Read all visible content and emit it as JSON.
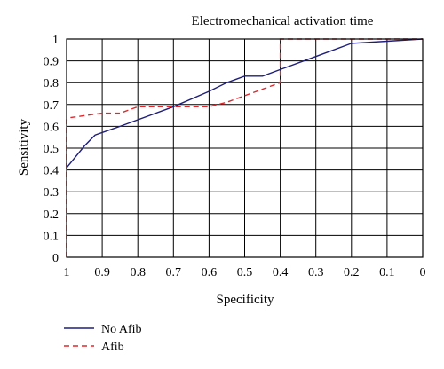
{
  "chart_data": {
    "type": "line",
    "title": "Electromechanical activation time",
    "xlabel": "Specificity",
    "ylabel": "Sensitivity",
    "xlim": [
      1,
      0
    ],
    "ylim": [
      0,
      1
    ],
    "x_ticks": [
      "1",
      "0.9",
      "0.8",
      "0.7",
      "0.6",
      "0.5",
      "0.4",
      "0.3",
      "0.2",
      "0.1",
      "0"
    ],
    "y_ticks": [
      "0",
      "0.1",
      "0.2",
      "0.3",
      "0.4",
      "0.5",
      "0.6",
      "0.7",
      "0.8",
      "0.9",
      "1"
    ],
    "grid": true,
    "legend_position": "bottom-left",
    "series": [
      {
        "name": "No Afib",
        "color": "#1f1f7a",
        "style": "solid",
        "x": [
          1,
          0.98,
          0.95,
          0.92,
          0.85,
          0.7,
          0.6,
          0.55,
          0.5,
          0.45,
          0.4,
          0.3,
          0.2,
          0.1,
          0
        ],
        "y": [
          0.41,
          0.45,
          0.51,
          0.56,
          0.6,
          0.69,
          0.76,
          0.8,
          0.83,
          0.83,
          0.86,
          0.92,
          0.98,
          0.99,
          1.0
        ]
      },
      {
        "name": "Afib",
        "color": "#e0282c",
        "style": "dashed",
        "x": [
          1,
          1,
          0.99,
          0.9,
          0.85,
          0.8,
          0.6,
          0.55,
          0.4,
          0.4,
          0.3,
          0
        ],
        "y": [
          0.0,
          0.63,
          0.64,
          0.66,
          0.66,
          0.69,
          0.69,
          0.71,
          0.8,
          1.0,
          1.0,
          1.0
        ]
      }
    ]
  }
}
